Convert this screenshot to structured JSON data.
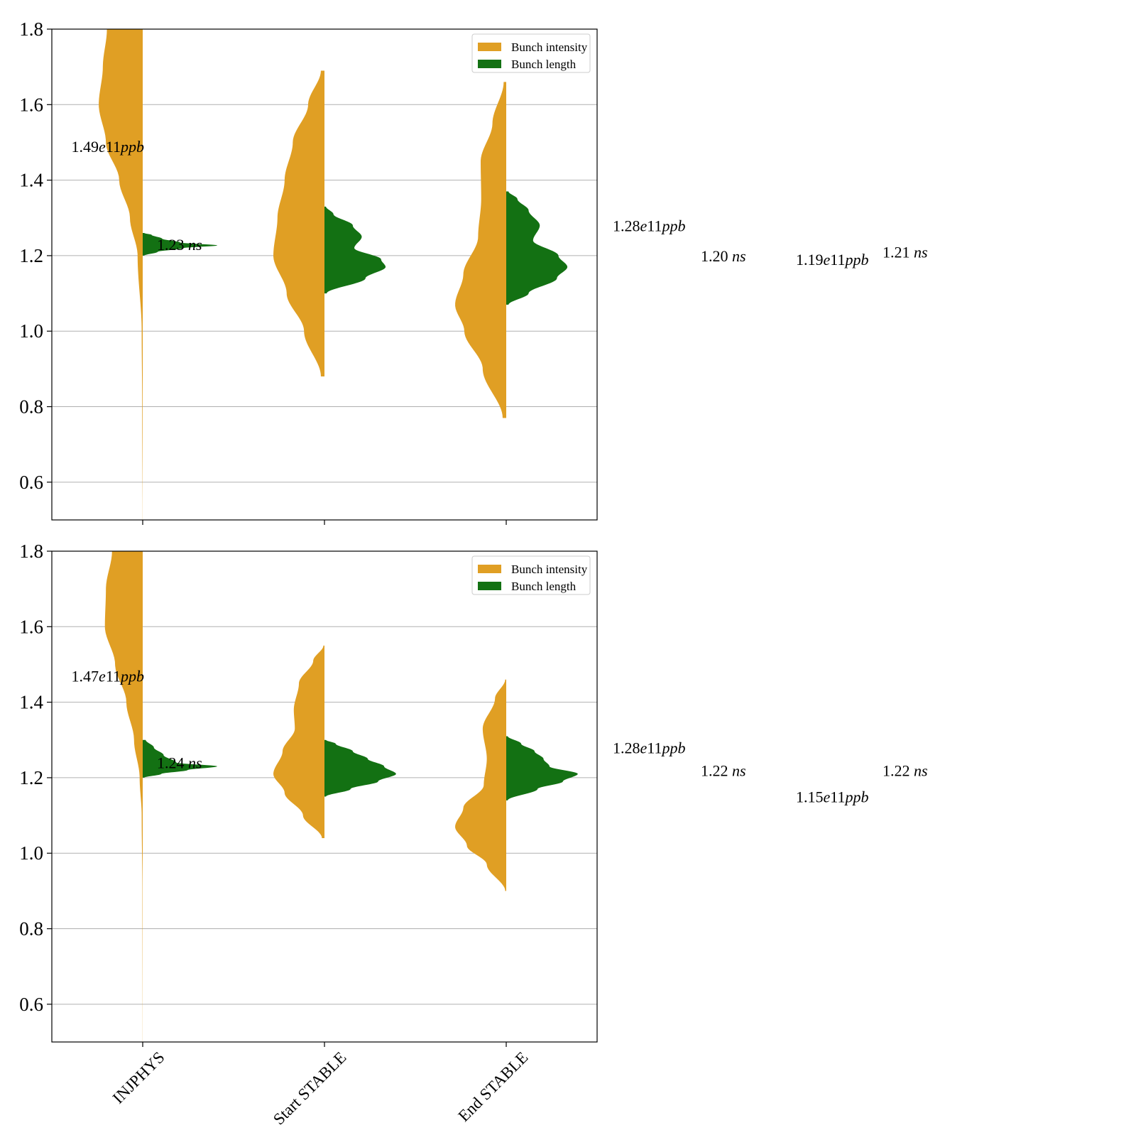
{
  "colors": {
    "intensity": "#e09f24",
    "length": "#137113",
    "grid": "#b0b0b0",
    "axis": "#000000"
  },
  "chart_data": [
    {
      "type": "violin",
      "ylim": [
        0.5,
        1.8
      ],
      "yticks": [
        "0.6",
        "0.8",
        "1.0",
        "1.2",
        "1.4",
        "1.6",
        "1.8"
      ],
      "categories": [
        "INJPHYS",
        "Start STABLE",
        "End STABLE"
      ],
      "grid": "horizontal",
      "legend": {
        "placement": "top-right",
        "entries": [
          {
            "label": "Bunch intensity",
            "color": "#e09f24"
          },
          {
            "label": "Bunch length",
            "color": "#137113"
          }
        ]
      },
      "series": [
        {
          "name": "Bunch intensity",
          "side": "left",
          "violins": [
            {
              "category": "INJPHYS",
              "min": 0.5,
              "max": 1.8,
              "profile": [
                [
                  0.5,
                  0.002
                ],
                [
                  0.8,
                  0.01
                ],
                [
                  1.0,
                  0.02
                ],
                [
                  1.2,
                  0.1
                ],
                [
                  1.3,
                  0.25
                ],
                [
                  1.4,
                  0.46
                ],
                [
                  1.5,
                  0.72
                ],
                [
                  1.6,
                  0.86
                ],
                [
                  1.7,
                  0.78
                ],
                [
                  1.8,
                  0.7
                ]
              ]
            },
            {
              "category": "Start STABLE",
              "min": 0.88,
              "max": 1.69,
              "profile": [
                [
                  0.88,
                  0.07
                ],
                [
                  1.0,
                  0.4
                ],
                [
                  1.1,
                  0.74
                ],
                [
                  1.2,
                  1.0
                ],
                [
                  1.3,
                  0.92
                ],
                [
                  1.4,
                  0.78
                ],
                [
                  1.5,
                  0.62
                ],
                [
                  1.6,
                  0.32
                ],
                [
                  1.69,
                  0.07
                ]
              ]
            },
            {
              "category": "End STABLE",
              "min": 0.77,
              "max": 1.66,
              "profile": [
                [
                  0.77,
                  0.07
                ],
                [
                  0.9,
                  0.46
                ],
                [
                  1.0,
                  0.82
                ],
                [
                  1.07,
                  1.0
                ],
                [
                  1.15,
                  0.84
                ],
                [
                  1.25,
                  0.55
                ],
                [
                  1.35,
                  0.49
                ],
                [
                  1.45,
                  0.5
                ],
                [
                  1.55,
                  0.27
                ],
                [
                  1.66,
                  0.05
                ]
              ]
            }
          ]
        },
        {
          "name": "Bunch length",
          "side": "right",
          "violins": [
            {
              "category": "INJPHYS",
              "min": 1.2,
              "max": 1.26,
              "profile": [
                [
                  1.2,
                  0.02
                ],
                [
                  1.21,
                  0.2
                ],
                [
                  1.22,
                  0.55
                ],
                [
                  1.227,
                  1.0
                ],
                [
                  1.235,
                  0.5
                ],
                [
                  1.245,
                  0.26
                ],
                [
                  1.255,
                  0.12
                ],
                [
                  1.26,
                  0.02
                ]
              ]
            },
            {
              "category": "Start STABLE",
              "min": 1.1,
              "max": 1.33,
              "profile": [
                [
                  1.1,
                  0.03
                ],
                [
                  1.14,
                  0.55
                ],
                [
                  1.17,
                  0.82
                ],
                [
                  1.19,
                  0.76
                ],
                [
                  1.22,
                  0.4
                ],
                [
                  1.25,
                  0.5
                ],
                [
                  1.28,
                  0.38
                ],
                [
                  1.31,
                  0.12
                ],
                [
                  1.33,
                  0.02
                ]
              ]
            },
            {
              "category": "End STABLE",
              "min": 1.07,
              "max": 1.37,
              "profile": [
                [
                  1.07,
                  0.03
                ],
                [
                  1.1,
                  0.3
                ],
                [
                  1.14,
                  0.68
                ],
                [
                  1.17,
                  0.82
                ],
                [
                  1.2,
                  0.7
                ],
                [
                  1.24,
                  0.36
                ],
                [
                  1.28,
                  0.45
                ],
                [
                  1.32,
                  0.3
                ],
                [
                  1.35,
                  0.15
                ],
                [
                  1.37,
                  0.03
                ]
              ]
            }
          ]
        }
      ],
      "annotations": [
        {
          "text_num": "1.49",
          "text_mid": "e11",
          "text_unit": "ppb",
          "kind": "intensity",
          "category": "INJPHYS",
          "y": 1.49
        },
        {
          "text_num": "1.23 ",
          "text_mid": "",
          "text_unit": "ns",
          "kind": "length",
          "category": "INJPHYS",
          "y": 1.23
        },
        {
          "text_num": "1.28",
          "text_mid": "e11",
          "text_unit": "ppb",
          "kind": "intensity",
          "category": "Start STABLE",
          "y": 1.28
        },
        {
          "text_num": "1.20 ",
          "text_mid": "",
          "text_unit": "ns",
          "kind": "length",
          "category": "Start STABLE",
          "y": 1.2
        },
        {
          "text_num": "1.19",
          "text_mid": "e11",
          "text_unit": "ppb",
          "kind": "intensity",
          "category": "End STABLE",
          "y": 1.19
        },
        {
          "text_num": "1.21 ",
          "text_mid": "",
          "text_unit": "ns",
          "kind": "length",
          "category": "End STABLE",
          "y": 1.21
        }
      ]
    },
    {
      "type": "violin",
      "ylim": [
        0.5,
        1.8
      ],
      "yticks": [
        "0.6",
        "0.8",
        "1.0",
        "1.2",
        "1.4",
        "1.6",
        "1.8"
      ],
      "categories": [
        "INJPHYS",
        "Start STABLE",
        "End STABLE"
      ],
      "grid": "horizontal",
      "legend": {
        "placement": "top-right",
        "entries": [
          {
            "label": "Bunch intensity",
            "color": "#e09f24"
          },
          {
            "label": "Bunch length",
            "color": "#137113"
          }
        ]
      },
      "series": [
        {
          "name": "Bunch intensity",
          "side": "left",
          "violins": [
            {
              "category": "INJPHYS",
              "min": 0.5,
              "max": 1.8,
              "profile": [
                [
                  0.5,
                  0.002
                ],
                [
                  0.9,
                  0.006
                ],
                [
                  1.1,
                  0.02
                ],
                [
                  1.2,
                  0.06
                ],
                [
                  1.3,
                  0.17
                ],
                [
                  1.4,
                  0.32
                ],
                [
                  1.5,
                  0.54
                ],
                [
                  1.6,
                  0.74
                ],
                [
                  1.7,
                  0.72
                ],
                [
                  1.8,
                  0.6
                ]
              ]
            },
            {
              "category": "Start STABLE",
              "min": 1.04,
              "max": 1.55,
              "profile": [
                [
                  1.04,
                  0.05
                ],
                [
                  1.1,
                  0.42
                ],
                [
                  1.16,
                  0.78
                ],
                [
                  1.21,
                  1.0
                ],
                [
                  1.27,
                  0.82
                ],
                [
                  1.33,
                  0.58
                ],
                [
                  1.38,
                  0.6
                ],
                [
                  1.45,
                  0.5
                ],
                [
                  1.51,
                  0.22
                ],
                [
                  1.55,
                  0.02
                ]
              ]
            },
            {
              "category": "End STABLE",
              "min": 0.9,
              "max": 1.46,
              "profile": [
                [
                  0.9,
                  0.02
                ],
                [
                  0.97,
                  0.38
                ],
                [
                  1.02,
                  0.77
                ],
                [
                  1.07,
                  1.0
                ],
                [
                  1.12,
                  0.84
                ],
                [
                  1.18,
                  0.44
                ],
                [
                  1.25,
                  0.38
                ],
                [
                  1.33,
                  0.46
                ],
                [
                  1.41,
                  0.22
                ],
                [
                  1.46,
                  0.02
                ]
              ]
            }
          ]
        },
        {
          "name": "Bunch length",
          "side": "right",
          "violins": [
            {
              "category": "INJPHYS",
              "min": 1.2,
              "max": 1.3,
              "profile": [
                [
                  1.2,
                  0.02
                ],
                [
                  1.21,
                  0.25
                ],
                [
                  1.22,
                  0.6
                ],
                [
                  1.23,
                  1.0
                ],
                [
                  1.24,
                  0.45
                ],
                [
                  1.26,
                  0.28
                ],
                [
                  1.28,
                  0.15
                ],
                [
                  1.3,
                  0.04
                ]
              ]
            },
            {
              "category": "Start STABLE",
              "min": 1.15,
              "max": 1.3,
              "profile": [
                [
                  1.15,
                  0.02
                ],
                [
                  1.17,
                  0.35
                ],
                [
                  1.19,
                  0.72
                ],
                [
                  1.21,
                  0.96
                ],
                [
                  1.23,
                  0.8
                ],
                [
                  1.25,
                  0.58
                ],
                [
                  1.27,
                  0.38
                ],
                [
                  1.29,
                  0.15
                ],
                [
                  1.3,
                  0.02
                ]
              ]
            },
            {
              "category": "End STABLE",
              "min": 1.14,
              "max": 1.31,
              "profile": [
                [
                  1.14,
                  0.02
                ],
                [
                  1.17,
                  0.42
                ],
                [
                  1.19,
                  0.76
                ],
                [
                  1.21,
                  0.96
                ],
                [
                  1.23,
                  0.58
                ],
                [
                  1.25,
                  0.5
                ],
                [
                  1.27,
                  0.38
                ],
                [
                  1.29,
                  0.2
                ],
                [
                  1.31,
                  0.02
                ]
              ]
            }
          ]
        }
      ],
      "annotations": [
        {
          "text_num": "1.47",
          "text_mid": "e11",
          "text_unit": "ppb",
          "kind": "intensity",
          "category": "INJPHYS",
          "y": 1.47
        },
        {
          "text_num": "1.24 ",
          "text_mid": "",
          "text_unit": "ns",
          "kind": "length",
          "category": "INJPHYS",
          "y": 1.24
        },
        {
          "text_num": "1.28",
          "text_mid": "e11",
          "text_unit": "ppb",
          "kind": "intensity",
          "category": "Start STABLE",
          "y": 1.28
        },
        {
          "text_num": "1.22 ",
          "text_mid": "",
          "text_unit": "ns",
          "kind": "length",
          "category": "Start STABLE",
          "y": 1.22
        },
        {
          "text_num": "1.15",
          "text_mid": "e11",
          "text_unit": "ppb",
          "kind": "intensity",
          "category": "End STABLE",
          "y": 1.15
        },
        {
          "text_num": "1.22 ",
          "text_mid": "",
          "text_unit": "ns",
          "kind": "length",
          "category": "End STABLE",
          "y": 1.22
        }
      ]
    }
  ]
}
